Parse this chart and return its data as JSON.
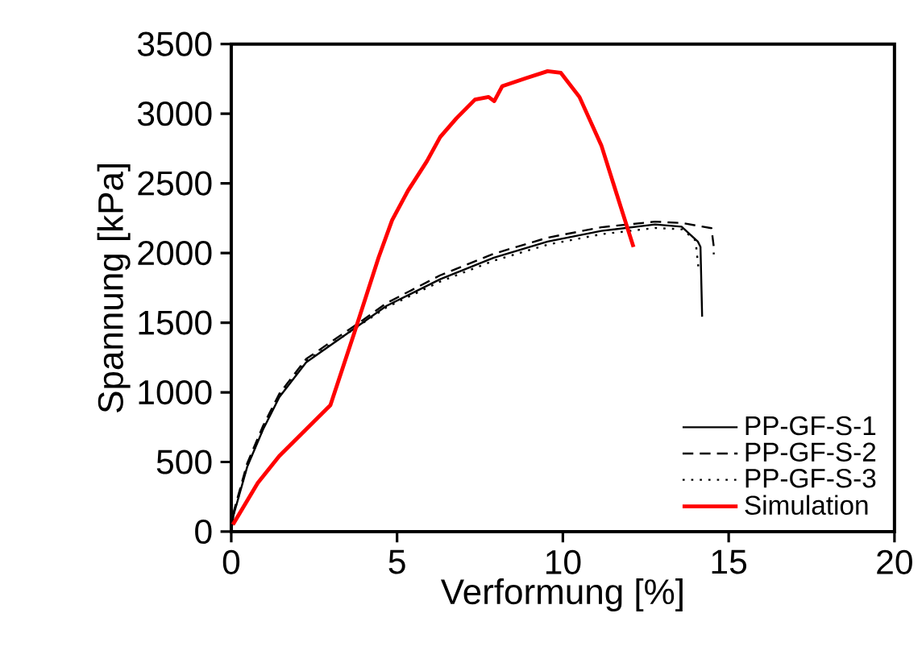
{
  "chart_data": {
    "type": "line",
    "xlabel": "Verformung [%]",
    "ylabel": "Spannung [kPa]",
    "xlim": [
      0,
      20
    ],
    "ylim": [
      0,
      3500
    ],
    "xticks": [
      0,
      5,
      10,
      15,
      20
    ],
    "yticks": [
      0,
      500,
      1000,
      1500,
      2000,
      2500,
      3000,
      3500
    ],
    "grid": false,
    "legend": "bottom right",
    "marker": "none",
    "series": [
      {
        "name": "PP-GF-S-1",
        "color": "#000000",
        "line_style": "solid",
        "x": [
          0,
          0.07,
          0.48,
          0.96,
          1.45,
          2.26,
          3.8,
          4.68,
          6.3,
          7.92,
          9.54,
          11.16,
          12.78,
          13.58,
          14.07,
          14.15,
          14.2
        ],
        "values": [
          0,
          120,
          465,
          734,
          965,
          1216,
          1473,
          1620,
          1812,
          1966,
          2082,
          2159,
          2205,
          2189,
          2082,
          2044,
          1543
        ]
      },
      {
        "name": "PP-GF-S-2",
        "color": "#000000",
        "line_style": "dashed",
        "x": [
          0,
          0.07,
          0.48,
          0.96,
          1.45,
          2.26,
          3.8,
          4.68,
          6.3,
          7.92,
          9.54,
          11.16,
          12.78,
          13.6,
          14.48,
          14.55,
          14.55
        ],
        "values": [
          0,
          140,
          490,
          760,
          990,
          1240,
          1490,
          1640,
          1840,
          1995,
          2110,
          2185,
          2225,
          2215,
          2178,
          2047,
          1990
        ]
      },
      {
        "name": "PP-GF-S-3",
        "color": "#000000",
        "line_style": "dotted",
        "x": [
          0,
          0.07,
          0.48,
          0.96,
          1.45,
          2.26,
          3.8,
          4.68,
          6.3,
          7.92,
          9.54,
          11.16,
          12.78,
          13.6,
          14.0,
          14.1
        ],
        "values": [
          0,
          125,
          470,
          740,
          975,
          1225,
          1470,
          1610,
          1795,
          1945,
          2060,
          2135,
          2180,
          2170,
          2090,
          1870
        ]
      },
      {
        "name": "Simulation",
        "color": "#ff0000",
        "line_style": "solid",
        "x": [
          0.05,
          0.8,
          1.45,
          2.99,
          3.71,
          4.44,
          4.85,
          5.33,
          5.9,
          6.3,
          6.79,
          7.35,
          7.76,
          7.93,
          8.17,
          8.89,
          9.54,
          9.94,
          10.5,
          11.16,
          11.72,
          12.13
        ],
        "values": [
          50,
          350,
          543,
          908,
          1427,
          1966,
          2235,
          2448,
          2659,
          2832,
          2967,
          3101,
          3120,
          3090,
          3197,
          3255,
          3305,
          3293,
          3120,
          2773,
          2350,
          2043
        ]
      }
    ]
  }
}
